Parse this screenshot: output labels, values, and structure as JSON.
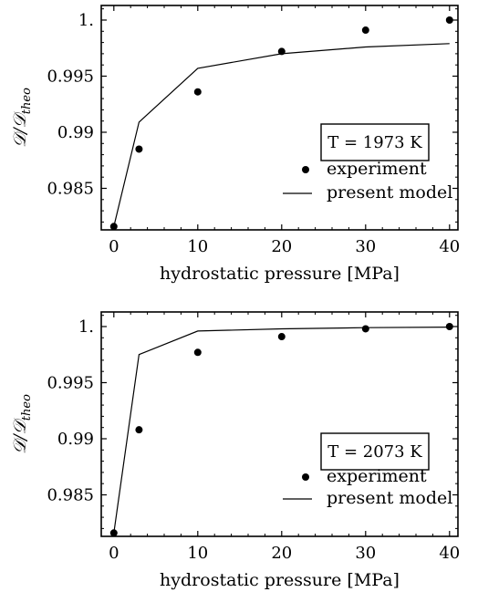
{
  "chart_data": [
    {
      "type": "scatter",
      "annotation": "T = 1973 K",
      "xlabel": "hydrostatic pressure [MPa]",
      "ylabel_parts": {
        "main": "𝒟/𝒟",
        "sub": "theo"
      },
      "xlim": [
        -1.5,
        41
      ],
      "ylim": [
        0.9813,
        1.0013
      ],
      "xticks": [
        0,
        10,
        20,
        30,
        40
      ],
      "yticks": [
        0.985,
        0.99,
        0.995,
        1
      ],
      "ytick_labels": [
        "0.985",
        "0.99",
        "0.995",
        "1."
      ],
      "series": [
        {
          "name": "experiment",
          "kind": "points",
          "x": [
            0,
            3,
            10,
            20,
            30,
            40
          ],
          "y": [
            0.9816,
            0.9885,
            0.9936,
            0.9972,
            0.9991,
            1.0
          ]
        },
        {
          "name": "present model",
          "kind": "line",
          "x": [
            0,
            3,
            10,
            20,
            30,
            40
          ],
          "y": [
            0.9816,
            0.9909,
            0.9957,
            0.997,
            0.9976,
            0.9979
          ]
        }
      ],
      "legend_position": "lower-right",
      "grid": false
    },
    {
      "type": "scatter",
      "annotation": "T = 2073 K",
      "xlabel": "hydrostatic pressure [MPa]",
      "ylabel_parts": {
        "main": "𝒟/𝒟",
        "sub": "theo"
      },
      "xlim": [
        -1.5,
        41
      ],
      "ylim": [
        0.9813,
        1.0013
      ],
      "xticks": [
        0,
        10,
        20,
        30,
        40
      ],
      "yticks": [
        0.985,
        0.99,
        0.995,
        1
      ],
      "ytick_labels": [
        "0.985",
        "0.99",
        "0.995",
        "1."
      ],
      "series": [
        {
          "name": "experiment",
          "kind": "points",
          "x": [
            0,
            3,
            10,
            20,
            30,
            40
          ],
          "y": [
            0.9816,
            0.9908,
            0.9977,
            0.9991,
            0.9998,
            1.0
          ]
        },
        {
          "name": "present model",
          "kind": "line",
          "x": [
            0,
            3,
            10,
            20,
            30,
            40
          ],
          "y": [
            0.9816,
            0.9975,
            0.9996,
            0.9998,
            0.9999,
            0.99995
          ]
        }
      ],
      "legend_position": "lower-right",
      "grid": false
    }
  ]
}
